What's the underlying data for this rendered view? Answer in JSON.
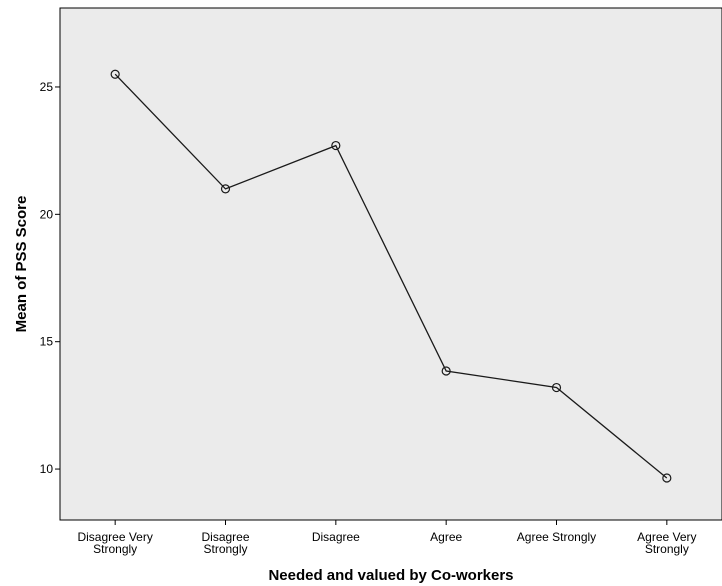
{
  "chart_data": {
    "type": "line",
    "title": "",
    "xlabel": "Needed and valued by Co-workers",
    "ylabel": "Mean of PSS Score",
    "categories": [
      [
        "Disagree Very",
        "Strongly"
      ],
      [
        "Disagree",
        "Strongly"
      ],
      [
        "Disagree"
      ],
      [
        "Agree"
      ],
      [
        "Agree Strongly"
      ],
      [
        "Agree Very",
        "Strongly"
      ]
    ],
    "values": [
      25.5,
      21.0,
      22.7,
      13.85,
      13.2,
      9.65
    ],
    "yticks": [
      10,
      15,
      20,
      25
    ],
    "ylim": [
      8.0,
      28.1
    ],
    "grid": false,
    "marker": "open-circle",
    "colors": {
      "plot_bg": "#ebebeb",
      "line": "#1a1a1a",
      "axis": "#000000"
    }
  }
}
